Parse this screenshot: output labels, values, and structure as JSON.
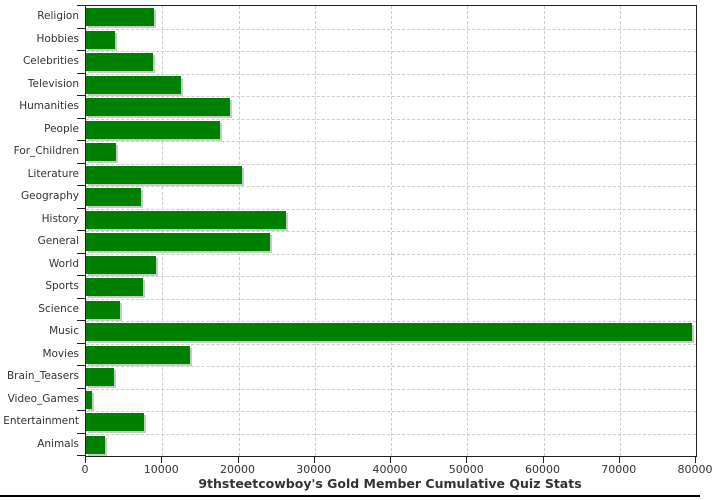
{
  "chart_data": {
    "type": "bar",
    "orientation": "horizontal",
    "title": "9thsteetcowboy's Gold Member Cumulative Quiz Stats",
    "categories": [
      "Religion",
      "Hobbies",
      "Celebrities",
      "Television",
      "Humanities",
      "People",
      "For_Children",
      "Literature",
      "Geography",
      "History",
      "General",
      "World",
      "Sports",
      "Science",
      "Music",
      "Movies",
      "Brain_Teasers",
      "Video_Games",
      "Entertainment",
      "Animals"
    ],
    "values": [
      8900,
      3850,
      8800,
      12400,
      18900,
      17600,
      3950,
      20500,
      7200,
      26250,
      24100,
      9200,
      7500,
      4500,
      79500,
      13650,
      3700,
      800,
      7600,
      2500
    ],
    "xlabel": "",
    "ylabel": "",
    "xlim": [
      0,
      80000
    ],
    "x_ticks": [
      0,
      10000,
      20000,
      30000,
      40000,
      50000,
      60000,
      70000,
      80000
    ],
    "grid": true,
    "legend_position": "none",
    "bar_color": "#008000"
  },
  "colors": {
    "bar": "#008000",
    "bar_shadow": "#c9c9c9",
    "grid": "#cccccc",
    "axis": "#222222",
    "text": "#333333",
    "bottom_rule": "#000000",
    "background": "#ffffff"
  }
}
